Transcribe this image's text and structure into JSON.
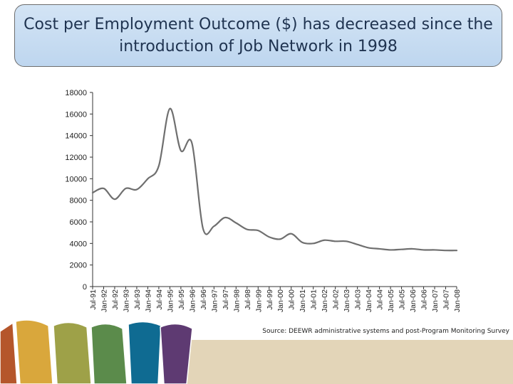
{
  "title": "Cost per Employment Outcome ($) has decreased since the introduction of Job Network in 1998",
  "source": "Source: DEEWR administrative systems and post-Program Monitoring Survey",
  "colors": {
    "line": "#6f6f6f",
    "title_bg": "#c8dcf2",
    "footer": [
      "#b5562b",
      "#d9a73c",
      "#9ea148",
      "#5b8b4b",
      "#0f6b92",
      "#5e3a72",
      "#e3d5b8"
    ]
  },
  "chart_data": {
    "type": "line",
    "title": "Cost per Employment Outcome ($) has decreased since the introduction of Job Network in 1998",
    "xlabel": "",
    "ylabel": "",
    "ylim": [
      0,
      18000
    ],
    "yticks": [
      0,
      2000,
      4000,
      6000,
      8000,
      10000,
      12000,
      14000,
      16000,
      18000
    ],
    "grid": false,
    "legend": "none",
    "categories": [
      "Jul-91",
      "Jan-92",
      "Jul-92",
      "Jan-93",
      "Jul-93",
      "Jan-94",
      "Jul-94",
      "Jan-95",
      "Jul-95",
      "Jan-96",
      "Jul-96",
      "Jan-97",
      "Jul-97",
      "Jan-98",
      "Jul-98",
      "Jan-99",
      "Jul-99",
      "Jan-00",
      "Jul-00",
      "Jan-01",
      "Jul-01",
      "Jan-02",
      "Jul-02",
      "Jan-03",
      "Jul-03",
      "Jan-04",
      "Jul-04",
      "Jan-05",
      "Jul-05",
      "Jan-06",
      "Jul-06",
      "Jan-07",
      "Jul-07",
      "Jan-08"
    ],
    "values": [
      8700,
      9100,
      8100,
      9100,
      9000,
      10000,
      11200,
      16500,
      12600,
      13300,
      5400,
      5600,
      6400,
      5900,
      5300,
      5200,
      4600,
      4400,
      4900,
      4100,
      4000,
      4300,
      4200,
      4200,
      3900,
      3600,
      3500,
      3400,
      3450,
      3500,
      3400,
      3400,
      3350,
      3350
    ]
  }
}
